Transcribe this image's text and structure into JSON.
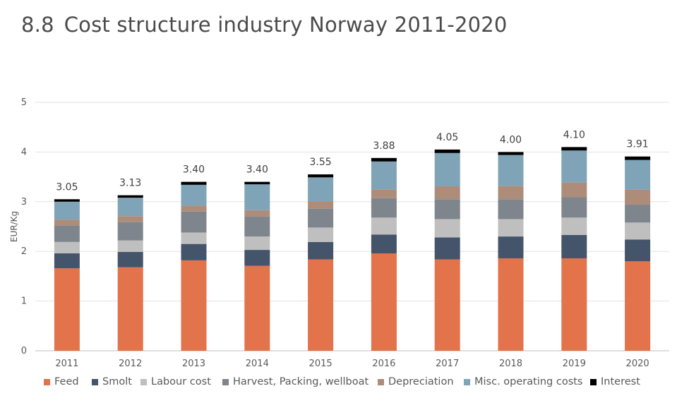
{
  "header": {
    "section_number": "8.8",
    "title_text": "Cost structure industry Norway 2011-2020"
  },
  "chart_data": {
    "type": "bar",
    "stacked": true,
    "title": "Cost structure industry Norway 2011-2020",
    "ylabel": "EUR/Kg",
    "xlabel": "",
    "ylim": [
      0,
      5
    ],
    "yticks": [
      "0",
      "1",
      "2",
      "3",
      "4",
      "5"
    ],
    "grid": true,
    "legend_position": "bottom",
    "categories": [
      "2011",
      "2012",
      "2013",
      "2014",
      "2015",
      "2016",
      "2017",
      "2018",
      "2019",
      "2020"
    ],
    "totals": [
      "3.05",
      "3.13",
      "3.40",
      "3.40",
      "3.55",
      "3.88",
      "4.05",
      "4.00",
      "4.10",
      "3.91"
    ],
    "series": [
      {
        "name": "Feed",
        "color": "#E2734A",
        "values": [
          1.66,
          1.68,
          1.82,
          1.71,
          1.84,
          1.96,
          1.84,
          1.86,
          1.86,
          1.8
        ]
      },
      {
        "name": "Smolt",
        "color": "#44546A",
        "values": [
          0.3,
          0.31,
          0.33,
          0.32,
          0.35,
          0.38,
          0.44,
          0.44,
          0.47,
          0.44
        ]
      },
      {
        "name": "Labour cost",
        "color": "#BFBFBF",
        "values": [
          0.23,
          0.23,
          0.23,
          0.27,
          0.29,
          0.34,
          0.37,
          0.35,
          0.35,
          0.34
        ]
      },
      {
        "name": "Harvest, Packing, wellboat",
        "color": "#7F858C",
        "values": [
          0.33,
          0.37,
          0.42,
          0.4,
          0.38,
          0.39,
          0.4,
          0.4,
          0.41,
          0.36
        ]
      },
      {
        "name": "Depreciation",
        "color": "#AD8C7A",
        "values": [
          0.12,
          0.12,
          0.12,
          0.13,
          0.15,
          0.18,
          0.26,
          0.27,
          0.3,
          0.3
        ]
      },
      {
        "name": "Misc. operating costs",
        "color": "#7FA4B8",
        "values": [
          0.36,
          0.37,
          0.42,
          0.52,
          0.48,
          0.56,
          0.67,
          0.62,
          0.64,
          0.6
        ]
      },
      {
        "name": "Interest",
        "color": "#000000",
        "values": [
          0.05,
          0.05,
          0.06,
          0.05,
          0.06,
          0.07,
          0.07,
          0.06,
          0.07,
          0.07
        ]
      }
    ]
  }
}
